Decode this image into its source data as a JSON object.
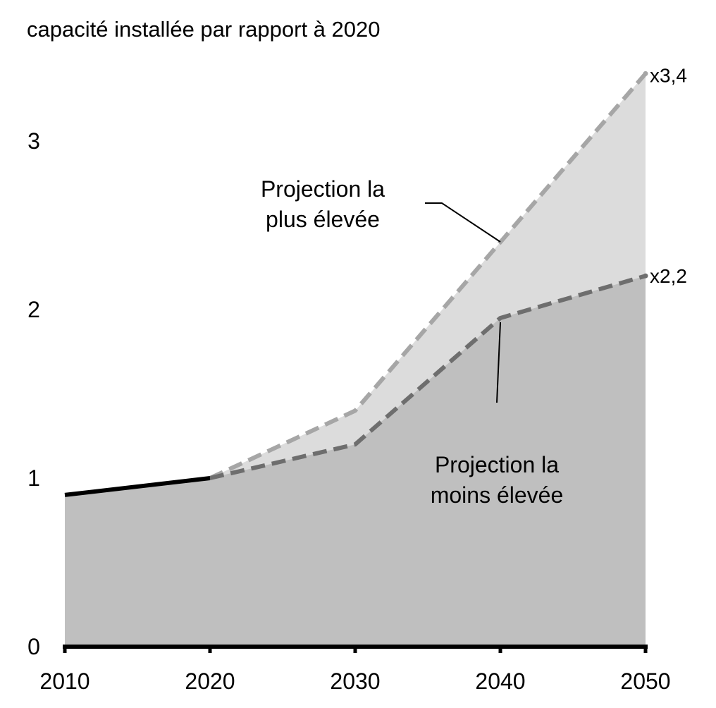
{
  "chart_data": {
    "type": "area",
    "title": "capacité installée par rapport à 2020",
    "x": [
      2010,
      2020,
      2030,
      2040,
      2050
    ],
    "x_ticks": [
      "2010",
      "2020",
      "2030",
      "2040",
      "2050"
    ],
    "y_ticks": [
      "0",
      "1",
      "2",
      "3"
    ],
    "ylim": [
      0,
      3.4
    ],
    "xlim": [
      2010,
      2050
    ],
    "grid": false,
    "series": [
      {
        "role": "historical",
        "x": [
          2010,
          2020
        ],
        "values": [
          0.9,
          1.0
        ],
        "color": "#000000"
      },
      {
        "role": "high",
        "x": [
          2020,
          2030,
          2040,
          2050
        ],
        "values": [
          1.0,
          1.4,
          2.4,
          3.4
        ],
        "color": "#a6a6a6",
        "fill": "#dcdcdc"
      },
      {
        "role": "low",
        "x": [
          2020,
          2030,
          2040,
          2050
        ],
        "values": [
          1.0,
          1.2,
          1.95,
          2.2
        ],
        "color": "#6e6e6e",
        "fill": "#bfbfbf"
      }
    ],
    "annotations": {
      "high_end_label": "x3,4",
      "low_end_label": "x2,2",
      "high_label_line1": "Projection la",
      "high_label_line2": "plus élevée",
      "low_label_line1": "Projection la",
      "low_label_line2": "moins élevée"
    }
  }
}
